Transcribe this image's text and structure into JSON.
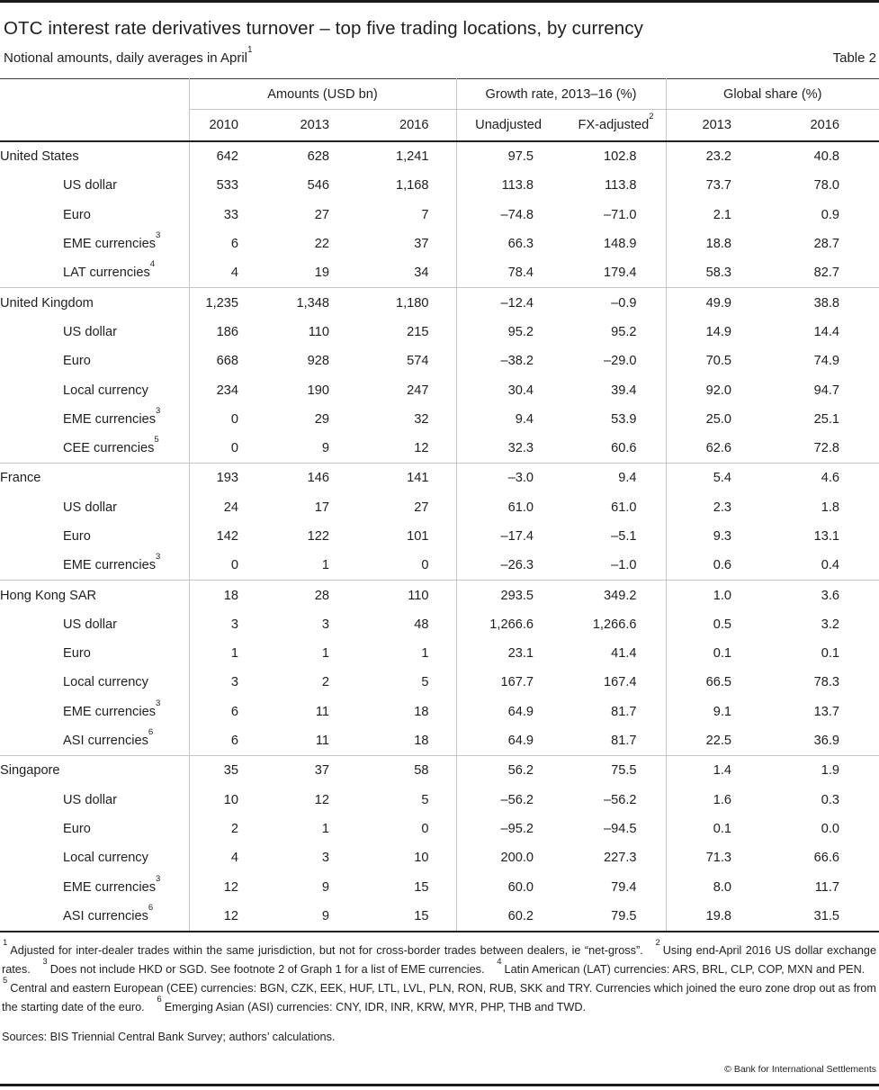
{
  "header": {
    "title": "OTC interest rate derivatives turnover – top five trading locations, by currency",
    "subtitle": "Notional amounts, daily averages in April",
    "subtitle_sup": "1",
    "table_label": "Table 2"
  },
  "table": {
    "groups": [
      {
        "label": "Amounts (USD bn)"
      },
      {
        "label": "Growth rate, 2013–16 (%)"
      },
      {
        "label": "Global share (%)"
      }
    ],
    "subheaders": {
      "amounts": [
        "2010",
        "2013",
        "2016"
      ],
      "growth_unadjusted": "Unadjusted",
      "growth_fx": "FX-adjusted",
      "growth_fx_sup": "2",
      "share": [
        "2013",
        "2016"
      ]
    },
    "sections": [
      {
        "rows": [
          {
            "label": "United States",
            "sup": "",
            "indent": false,
            "values": [
              "642",
              "628",
              "1,241",
              "97.5",
              "102.8",
              "23.2",
              "40.8"
            ]
          },
          {
            "label": "US dollar",
            "sup": "",
            "indent": true,
            "values": [
              "533",
              "546",
              "1,168",
              "113.8",
              "113.8",
              "73.7",
              "78.0"
            ]
          },
          {
            "label": "Euro",
            "sup": "",
            "indent": true,
            "values": [
              "33",
              "27",
              "7",
              "–74.8",
              "–71.0",
              "2.1",
              "0.9"
            ]
          },
          {
            "label": "EME currencies",
            "sup": "3",
            "indent": true,
            "values": [
              "6",
              "22",
              "37",
              "66.3",
              "148.9",
              "18.8",
              "28.7"
            ]
          },
          {
            "label": "LAT currencies",
            "sup": "4",
            "indent": true,
            "values": [
              "4",
              "19",
              "34",
              "78.4",
              "179.4",
              "58.3",
              "82.7"
            ]
          }
        ]
      },
      {
        "rows": [
          {
            "label": "United Kingdom",
            "sup": "",
            "indent": false,
            "values": [
              "1,235",
              "1,348",
              "1,180",
              "–12.4",
              "–0.9",
              "49.9",
              "38.8"
            ]
          },
          {
            "label": "US dollar",
            "sup": "",
            "indent": true,
            "values": [
              "186",
              "110",
              "215",
              "95.2",
              "95.2",
              "14.9",
              "14.4"
            ]
          },
          {
            "label": "Euro",
            "sup": "",
            "indent": true,
            "values": [
              "668",
              "928",
              "574",
              "–38.2",
              "–29.0",
              "70.5",
              "74.9"
            ]
          },
          {
            "label": "Local currency",
            "sup": "",
            "indent": true,
            "values": [
              "234",
              "190",
              "247",
              "30.4",
              "39.4",
              "92.0",
              "94.7"
            ]
          },
          {
            "label": "EME currencies",
            "sup": "3",
            "indent": true,
            "values": [
              "0",
              "29",
              "32",
              "9.4",
              "53.9",
              "25.0",
              "25.1"
            ]
          },
          {
            "label": "CEE currencies",
            "sup": "5",
            "indent": true,
            "values": [
              "0",
              "9",
              "12",
              "32.3",
              "60.6",
              "62.6",
              "72.8"
            ]
          }
        ]
      },
      {
        "rows": [
          {
            "label": "France",
            "sup": "",
            "indent": false,
            "values": [
              "193",
              "146",
              "141",
              "–3.0",
              "9.4",
              "5.4",
              "4.6"
            ]
          },
          {
            "label": "US dollar",
            "sup": "",
            "indent": true,
            "values": [
              "24",
              "17",
              "27",
              "61.0",
              "61.0",
              "2.3",
              "1.8"
            ]
          },
          {
            "label": "Euro",
            "sup": "",
            "indent": true,
            "values": [
              "142",
              "122",
              "101",
              "–17.4",
              "–5.1",
              "9.3",
              "13.1"
            ]
          },
          {
            "label": "EME currencies",
            "sup": "3",
            "indent": true,
            "values": [
              "0",
              "1",
              "0",
              "–26.3",
              "–1.0",
              "0.6",
              "0.4"
            ]
          }
        ]
      },
      {
        "rows": [
          {
            "label": "Hong Kong SAR",
            "sup": "",
            "indent": false,
            "values": [
              "18",
              "28",
              "110",
              "293.5",
              "349.2",
              "1.0",
              "3.6"
            ]
          },
          {
            "label": "US dollar",
            "sup": "",
            "indent": true,
            "values": [
              "3",
              "3",
              "48",
              "1,266.6",
              "1,266.6",
              "0.5",
              "3.2"
            ]
          },
          {
            "label": "Euro",
            "sup": "",
            "indent": true,
            "values": [
              "1",
              "1",
              "1",
              "23.1",
              "41.4",
              "0.1",
              "0.1"
            ]
          },
          {
            "label": "Local currency",
            "sup": "",
            "indent": true,
            "values": [
              "3",
              "2",
              "5",
              "167.7",
              "167.4",
              "66.5",
              "78.3"
            ]
          },
          {
            "label": "EME currencies",
            "sup": "3",
            "indent": true,
            "values": [
              "6",
              "11",
              "18",
              "64.9",
              "81.7",
              "9.1",
              "13.7"
            ]
          },
          {
            "label": "ASI currencies",
            "sup": "6",
            "indent": true,
            "values": [
              "6",
              "11",
              "18",
              "64.9",
              "81.7",
              "22.5",
              "36.9"
            ]
          }
        ]
      },
      {
        "rows": [
          {
            "label": "Singapore",
            "sup": "",
            "indent": false,
            "values": [
              "35",
              "37",
              "58",
              "56.2",
              "75.5",
              "1.4",
              "1.9"
            ]
          },
          {
            "label": "US dollar",
            "sup": "",
            "indent": true,
            "values": [
              "10",
              "12",
              "5",
              "–56.2",
              "–56.2",
              "1.6",
              "0.3"
            ]
          },
          {
            "label": "Euro",
            "sup": "",
            "indent": true,
            "values": [
              "2",
              "1",
              "0",
              "–95.2",
              "–94.5",
              "0.1",
              "0.0"
            ]
          },
          {
            "label": "Local currency",
            "sup": "",
            "indent": true,
            "values": [
              "4",
              "3",
              "10",
              "200.0",
              "227.3",
              "71.3",
              "66.6"
            ]
          },
          {
            "label": "EME currencies",
            "sup": "3",
            "indent": true,
            "values": [
              "12",
              "9",
              "15",
              "60.0",
              "79.4",
              "8.0",
              "11.7"
            ]
          },
          {
            "label": "ASI currencies",
            "sup": "6",
            "indent": true,
            "values": [
              "12",
              "9",
              "15",
              "60.2",
              "79.5",
              "19.8",
              "31.5"
            ]
          }
        ]
      }
    ]
  },
  "footnotes": [
    {
      "sup": "1",
      "text": "Adjusted for inter-dealer trades within the same jurisdiction, but not for cross-border trades between dealers, ie “net-gross”."
    },
    {
      "sup": "2",
      "text": "Using end-April 2016 US dollar exchange rates."
    },
    {
      "sup": "3",
      "text": "Does not include HKD or SGD. See footnote 2 of Graph 1 for a list of EME currencies."
    },
    {
      "sup": "4",
      "text": "Latin American (LAT) currencies: ARS, BRL, CLP, COP, MXN and PEN."
    },
    {
      "sup": "5",
      "text": "Central and eastern European (CEE) currencies: BGN, CZK, EEK, HUF, LTL, LVL, PLN, RON, RUB, SKK and TRY. Currencies which joined the euro zone drop out as from the starting date of the euro."
    },
    {
      "sup": "6",
      "text": "Emerging Asian (ASI) currencies: CNY, IDR, INR, KRW, MYR, PHP, THB and TWD."
    }
  ],
  "sources": "Sources: BIS Triennial Central Bank Survey; authors’ calculations.",
  "copyright": "© Bank for International Settlements"
}
